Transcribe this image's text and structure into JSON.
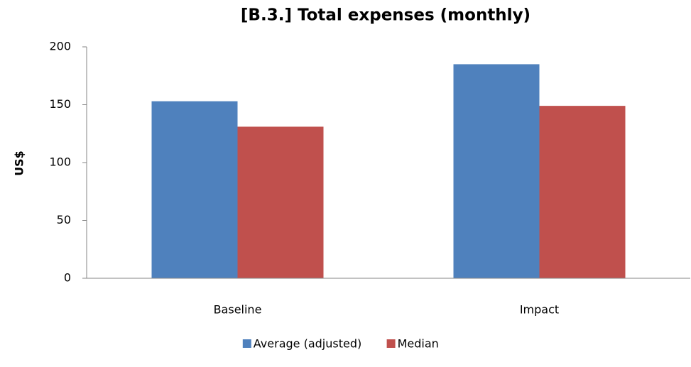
{
  "chart_data": {
    "type": "bar",
    "title": "[B.3.] Total expenses (monthly)",
    "y_label": "US$",
    "categories": [
      "Baseline",
      "Impact"
    ],
    "series": [
      {
        "name": "Average (adjusted)",
        "color": "#4f81bd",
        "values": [
          153,
          185
        ]
      },
      {
        "name": "Median",
        "color": "#c0504d",
        "values": [
          131,
          149
        ]
      }
    ],
    "ylim": [
      0,
      200
    ],
    "yticks": [
      0,
      50,
      100,
      150,
      200
    ],
    "grid": false,
    "legend": "bottom"
  }
}
